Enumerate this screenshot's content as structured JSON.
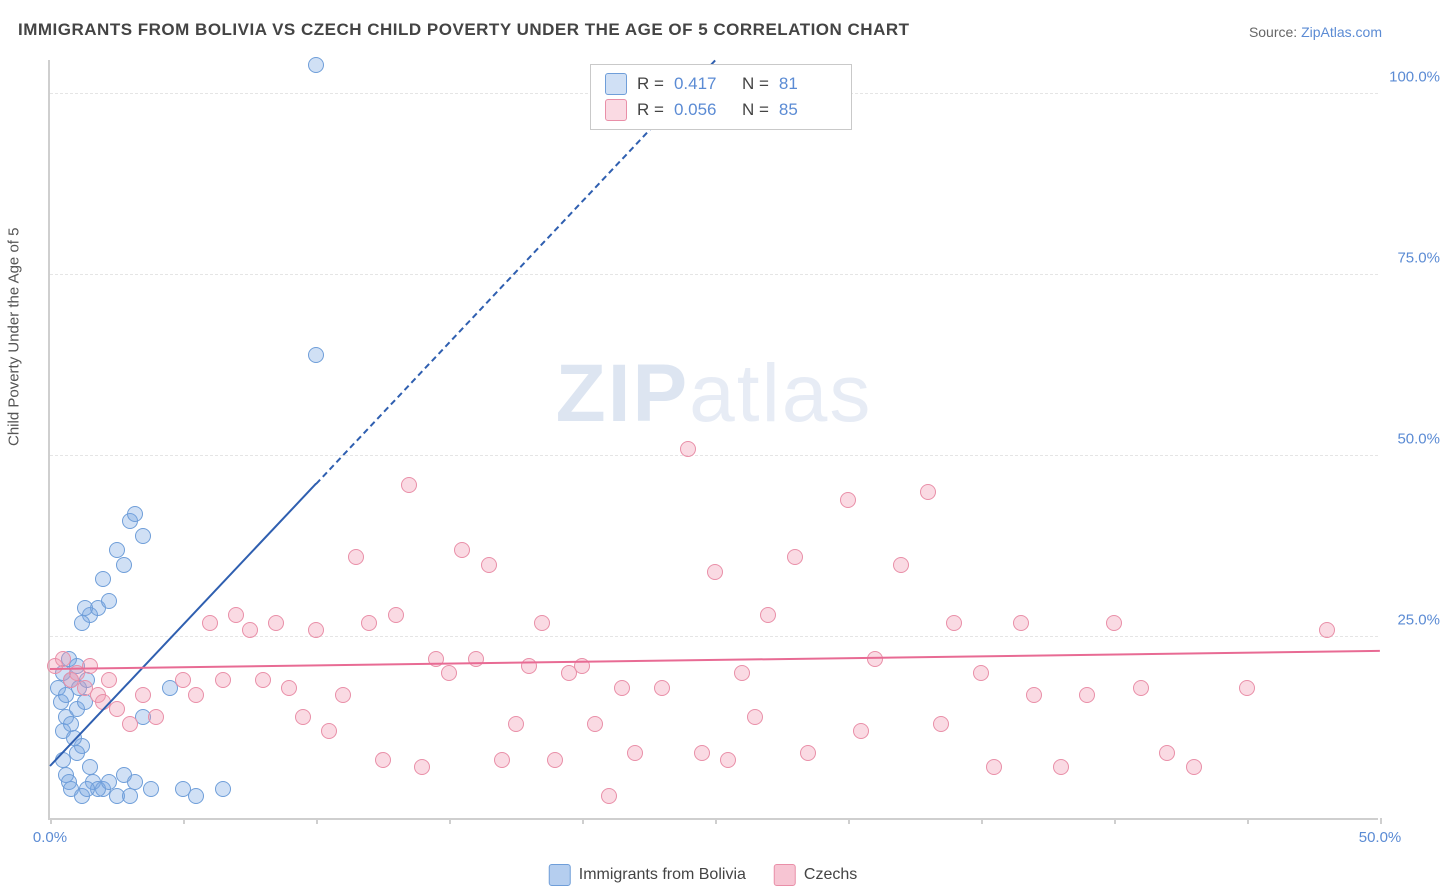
{
  "title": "IMMIGRANTS FROM BOLIVIA VS CZECH CHILD POVERTY UNDER THE AGE OF 5 CORRELATION CHART",
  "source_label": "Source:",
  "source_name": "ZipAtlas.com",
  "watermark_a": "ZIP",
  "watermark_b": "atlas",
  "yaxis_title": "Child Poverty Under the Age of 5",
  "chart": {
    "type": "scatter",
    "xlim": [
      0,
      50
    ],
    "ylim": [
      0,
      105
    ],
    "x_ticks": [
      0,
      5,
      10,
      15,
      20,
      25,
      30,
      35,
      40,
      45,
      50
    ],
    "x_tick_labels": {
      "0": "0.0%",
      "50": "50.0%"
    },
    "y_ticks": [
      25,
      50,
      75,
      100
    ],
    "y_tick_labels": {
      "25": "25.0%",
      "50": "50.0%",
      "75": "75.0%",
      "100": "100.0%"
    },
    "background_color": "#ffffff",
    "grid_color": "#e5e5e5",
    "axis_color": "#cfcfcf",
    "tick_label_color": "#5b8bd4",
    "marker_radius": 8,
    "marker_stroke_width": 1.5,
    "series": [
      {
        "name": "Immigrants from Bolivia",
        "fill": "rgba(120,165,225,0.35)",
        "stroke": "#6f9ed9",
        "line_color": "#2f5fb0",
        "R": "0.417",
        "N": "81",
        "regression": {
          "x1": 0,
          "y1": 7,
          "x2": 10,
          "y2": 46,
          "dashed_extend_to_x": 25
        },
        "points": [
          [
            0.3,
            18
          ],
          [
            0.4,
            16
          ],
          [
            0.5,
            20
          ],
          [
            0.6,
            14
          ],
          [
            0.7,
            22
          ],
          [
            0.8,
            19
          ],
          [
            0.5,
            12
          ],
          [
            0.6,
            17
          ],
          [
            1.0,
            15
          ],
          [
            1.1,
            18
          ],
          [
            1.2,
            10
          ],
          [
            1.0,
            21
          ],
          [
            1.3,
            16
          ],
          [
            1.4,
            19
          ],
          [
            0.8,
            13
          ],
          [
            0.9,
            11
          ],
          [
            1.0,
            9
          ],
          [
            1.5,
            7
          ],
          [
            1.6,
            5
          ],
          [
            2.0,
            4
          ],
          [
            2.5,
            3
          ],
          [
            3.0,
            3
          ],
          [
            1.8,
            4
          ],
          [
            2.2,
            5
          ],
          [
            0.5,
            8
          ],
          [
            0.6,
            6
          ],
          [
            0.7,
            5
          ],
          [
            0.8,
            4
          ],
          [
            1.2,
            3
          ],
          [
            1.4,
            4
          ],
          [
            2.8,
            6
          ],
          [
            3.2,
            5
          ],
          [
            3.5,
            14
          ],
          [
            3.8,
            4
          ],
          [
            4.5,
            18
          ],
          [
            5.0,
            4
          ],
          [
            5.5,
            3
          ],
          [
            1.5,
            28
          ],
          [
            1.8,
            29
          ],
          [
            2.0,
            33
          ],
          [
            2.2,
            30
          ],
          [
            1.2,
            27
          ],
          [
            1.3,
            29
          ],
          [
            2.5,
            37
          ],
          [
            2.8,
            35
          ],
          [
            3.0,
            41
          ],
          [
            3.2,
            42
          ],
          [
            3.5,
            39
          ],
          [
            6.5,
            4
          ],
          [
            10.0,
            64
          ],
          [
            10.0,
            104
          ]
        ]
      },
      {
        "name": "Czechs",
        "fill": "rgba(240,150,175,0.35)",
        "stroke": "#e98fa8",
        "line_color": "#e86b94",
        "R": "0.056",
        "N": "85",
        "regression": {
          "x1": 0,
          "y1": 20.5,
          "x2": 50,
          "y2": 23
        },
        "points": [
          [
            0.2,
            21
          ],
          [
            0.5,
            22
          ],
          [
            0.8,
            19
          ],
          [
            1.0,
            20
          ],
          [
            1.3,
            18
          ],
          [
            1.5,
            21
          ],
          [
            1.8,
            17
          ],
          [
            2.0,
            16
          ],
          [
            2.2,
            19
          ],
          [
            2.5,
            15
          ],
          [
            3.0,
            13
          ],
          [
            3.5,
            17
          ],
          [
            4.0,
            14
          ],
          [
            5.0,
            19
          ],
          [
            5.5,
            17
          ],
          [
            6.0,
            27
          ],
          [
            6.5,
            19
          ],
          [
            7.0,
            28
          ],
          [
            7.5,
            26
          ],
          [
            8.0,
            19
          ],
          [
            8.5,
            27
          ],
          [
            9.0,
            18
          ],
          [
            9.5,
            14
          ],
          [
            10.0,
            26
          ],
          [
            10.5,
            12
          ],
          [
            11.0,
            17
          ],
          [
            11.5,
            36
          ],
          [
            12.0,
            27
          ],
          [
            12.5,
            8
          ],
          [
            13.0,
            28
          ],
          [
            13.5,
            46
          ],
          [
            14.0,
            7
          ],
          [
            14.5,
            22
          ],
          [
            15.0,
            20
          ],
          [
            15.5,
            37
          ],
          [
            16.0,
            22
          ],
          [
            16.5,
            35
          ],
          [
            17.0,
            8
          ],
          [
            17.5,
            13
          ],
          [
            18.0,
            21
          ],
          [
            18.5,
            27
          ],
          [
            19.0,
            8
          ],
          [
            19.5,
            20
          ],
          [
            20.0,
            21
          ],
          [
            20.5,
            13
          ],
          [
            21.0,
            3
          ],
          [
            21.5,
            18
          ],
          [
            22.0,
            9
          ],
          [
            23.0,
            18
          ],
          [
            24.0,
            51
          ],
          [
            24.5,
            9
          ],
          [
            25.0,
            34
          ],
          [
            25.5,
            8
          ],
          [
            26.0,
            20
          ],
          [
            26.5,
            14
          ],
          [
            27.0,
            28
          ],
          [
            28.0,
            36
          ],
          [
            28.5,
            9
          ],
          [
            30.0,
            44
          ],
          [
            30.5,
            12
          ],
          [
            31.0,
            22
          ],
          [
            32.0,
            35
          ],
          [
            33.0,
            45
          ],
          [
            33.5,
            13
          ],
          [
            34.0,
            27
          ],
          [
            35.0,
            20
          ],
          [
            35.5,
            7
          ],
          [
            36.5,
            27
          ],
          [
            37.0,
            17
          ],
          [
            38.0,
            7
          ],
          [
            39.0,
            17
          ],
          [
            40.0,
            27
          ],
          [
            41.0,
            18
          ],
          [
            42.0,
            9
          ],
          [
            43.0,
            7
          ],
          [
            45.0,
            18
          ],
          [
            48.0,
            26
          ]
        ]
      }
    ]
  },
  "legend_bottom": [
    {
      "label": "Immigrants from Bolivia",
      "fill": "rgba(120,165,225,0.55)",
      "stroke": "#6f9ed9"
    },
    {
      "label": "Czechs",
      "fill": "rgba(240,150,175,0.55)",
      "stroke": "#e98fa8"
    }
  ]
}
